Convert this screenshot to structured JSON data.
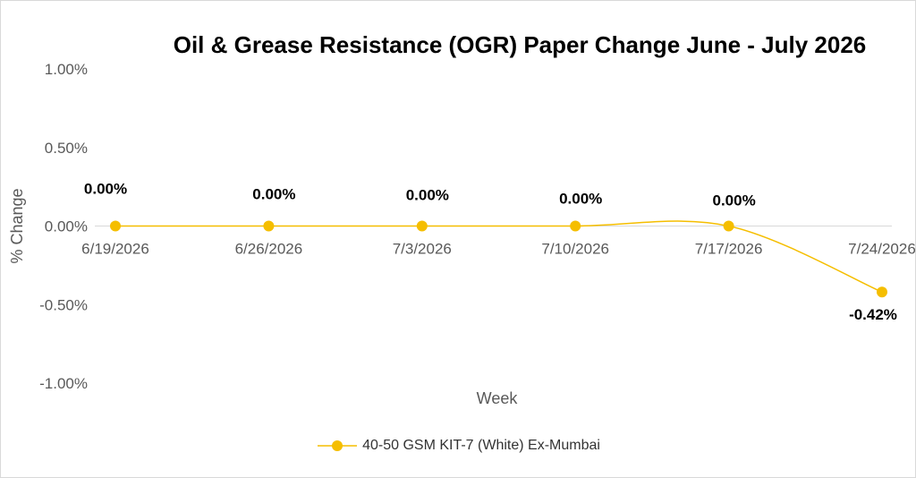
{
  "chart_data": {
    "type": "line",
    "title": "Oil & Grease Resistance (OGR) Paper Change June - July 2026",
    "xlabel": "Week",
    "ylabel": "% Change",
    "categories": [
      "6/19/2026",
      "6/26/2026",
      "7/3/2026",
      "7/10/2026",
      "7/17/2026",
      "7/24/2026"
    ],
    "series": [
      {
        "name": "40-50 GSM KIT-7 (White) Ex-Mumbai",
        "values": [
          0.0,
          0.0,
          0.0,
          0.0,
          0.0,
          -0.42
        ],
        "labels": [
          "0.00%",
          "0.00%",
          "0.00%",
          "0.00%",
          "0.00%",
          "-0.42%"
        ],
        "color": "#F5BE00"
      }
    ],
    "ylim": [
      -1.0,
      1.0
    ],
    "yticks": [
      "1.00%",
      "0.50%",
      "0.00%",
      "-0.50%",
      "-1.00%"
    ],
    "smoothed": true,
    "grid": false,
    "legend": "bottom"
  }
}
